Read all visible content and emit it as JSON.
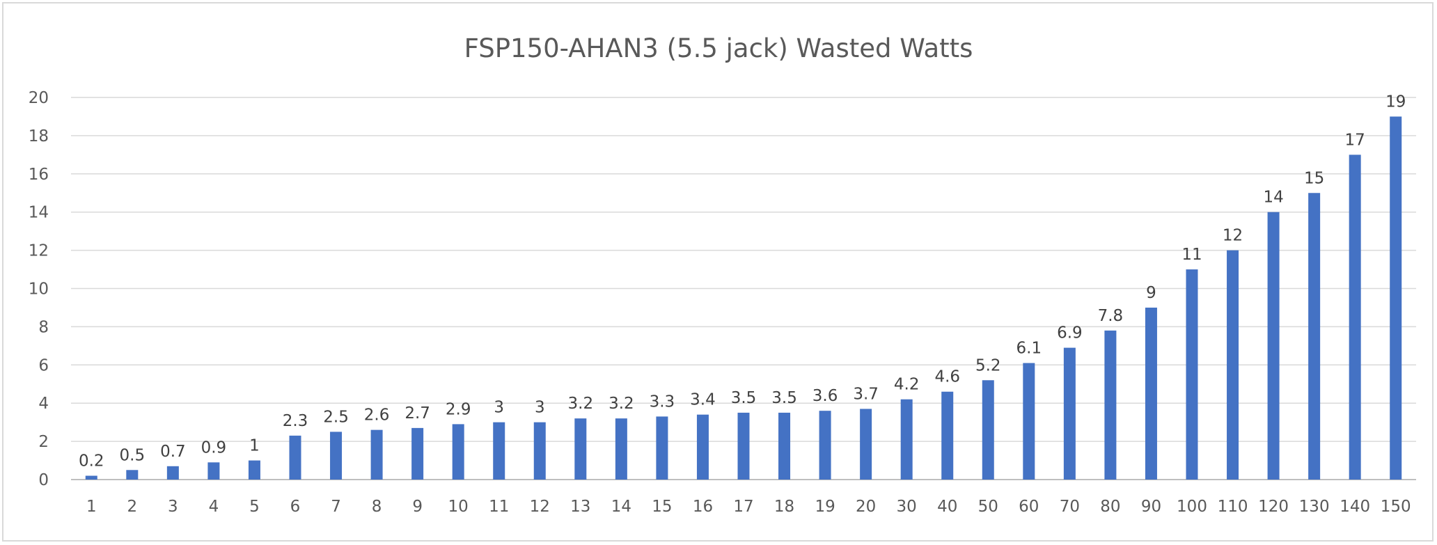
{
  "colors": {
    "bar": "#4472C4",
    "background": "#ffffff",
    "grid": "#d9d9d9"
  },
  "chart_data": {
    "type": "bar",
    "title": "FSP150-AHAN3 (5.5 jack) Wasted Watts",
    "xlabel": "",
    "ylabel": "",
    "ylim": [
      0,
      20
    ],
    "yticks": [
      0,
      2,
      4,
      6,
      8,
      10,
      12,
      14,
      16,
      18,
      20
    ],
    "grid": true,
    "legend": "none",
    "categories": [
      "1",
      "2",
      "3",
      "4",
      "5",
      "6",
      "7",
      "8",
      "9",
      "10",
      "11",
      "12",
      "13",
      "14",
      "15",
      "16",
      "17",
      "18",
      "19",
      "20",
      "30",
      "40",
      "50",
      "60",
      "70",
      "80",
      "90",
      "100",
      "110",
      "120",
      "130",
      "140",
      "150"
    ],
    "values": [
      0.2,
      0.5,
      0.7,
      0.9,
      1,
      2.3,
      2.5,
      2.6,
      2.7,
      2.9,
      3,
      3,
      3.2,
      3.2,
      3.3,
      3.4,
      3.5,
      3.5,
      3.6,
      3.7,
      4.2,
      4.6,
      5.2,
      6.1,
      6.9,
      7.8,
      9,
      11,
      12,
      14,
      15,
      17,
      19
    ],
    "data_labels": [
      "0.2",
      "0.5",
      "0.7",
      "0.9",
      "1",
      "2.3",
      "2.5",
      "2.6",
      "2.7",
      "2.9",
      "3",
      "3",
      "3.2",
      "3.2",
      "3.3",
      "3.4",
      "3.5",
      "3.5",
      "3.6",
      "3.7",
      "4.2",
      "4.6",
      "5.2",
      "6.1",
      "6.9",
      "7.8",
      "9",
      "11",
      "12",
      "14",
      "15",
      "17",
      "19"
    ]
  }
}
